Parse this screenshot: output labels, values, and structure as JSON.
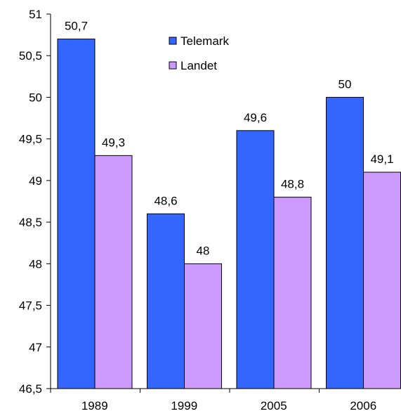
{
  "chart_data": {
    "type": "bar",
    "categories": [
      "1989",
      "1999",
      "2005",
      "2006"
    ],
    "series": [
      {
        "name": "Telemark",
        "values": [
          50.7,
          48.6,
          49.6,
          50
        ],
        "labels": [
          "50,7",
          "48,6",
          "49,6",
          "50"
        ],
        "color": "#3366ff"
      },
      {
        "name": "Landet",
        "values": [
          49.3,
          48,
          48.8,
          49.1
        ],
        "labels": [
          "49,3",
          "48",
          "48,8",
          "49,1"
        ],
        "color": "#cc99ff"
      }
    ],
    "ylim": [
      46.5,
      51
    ],
    "yticks": [
      {
        "value": 46.5,
        "label": "46,5"
      },
      {
        "value": 47,
        "label": "47"
      },
      {
        "value": 47.5,
        "label": "47,5"
      },
      {
        "value": 48,
        "label": "48"
      },
      {
        "value": 48.5,
        "label": "48,5"
      },
      {
        "value": 49,
        "label": "49"
      },
      {
        "value": 49.5,
        "label": "49,5"
      },
      {
        "value": 50,
        "label": "50"
      },
      {
        "value": 50.5,
        "label": "50,5"
      },
      {
        "value": 51,
        "label": "51"
      }
    ],
    "title": "",
    "xlabel": "",
    "ylabel": "",
    "grid": false,
    "legend": "top-center",
    "bar_border_color": "#000000"
  }
}
